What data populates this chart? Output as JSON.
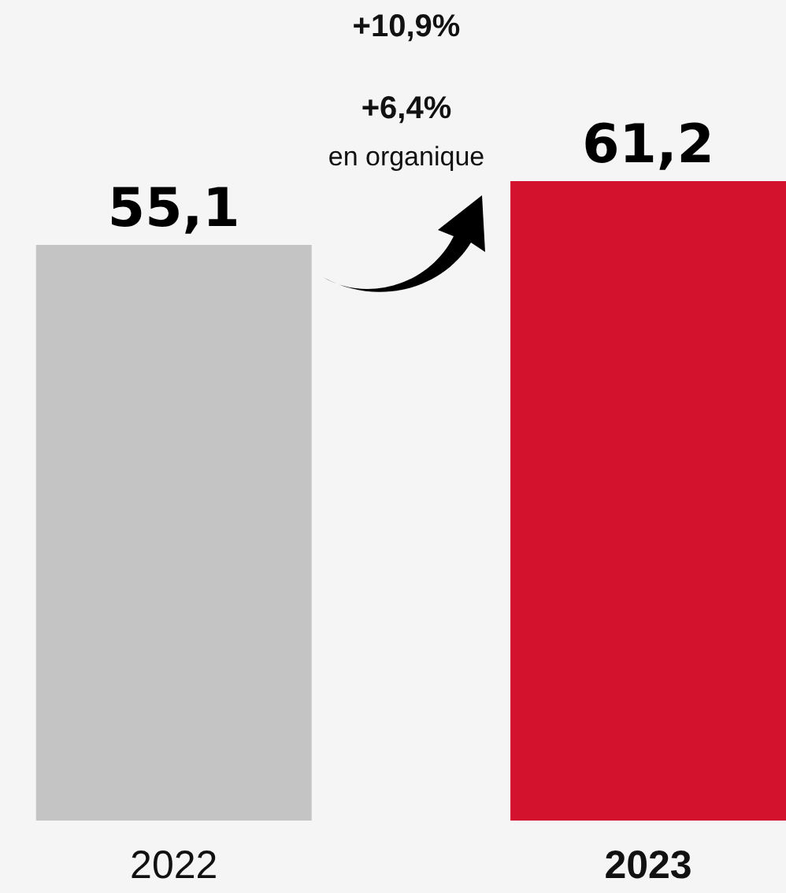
{
  "chart_data": {
    "type": "bar",
    "categories": [
      "2022",
      "2023"
    ],
    "values": [
      55.1,
      61.2
    ],
    "colors": [
      "#c4c4c4",
      "#d3122e"
    ],
    "value_labels": [
      "55,1",
      "61,2"
    ],
    "annotations": [
      "+10,9%",
      "+6,4%",
      "en organique"
    ]
  }
}
